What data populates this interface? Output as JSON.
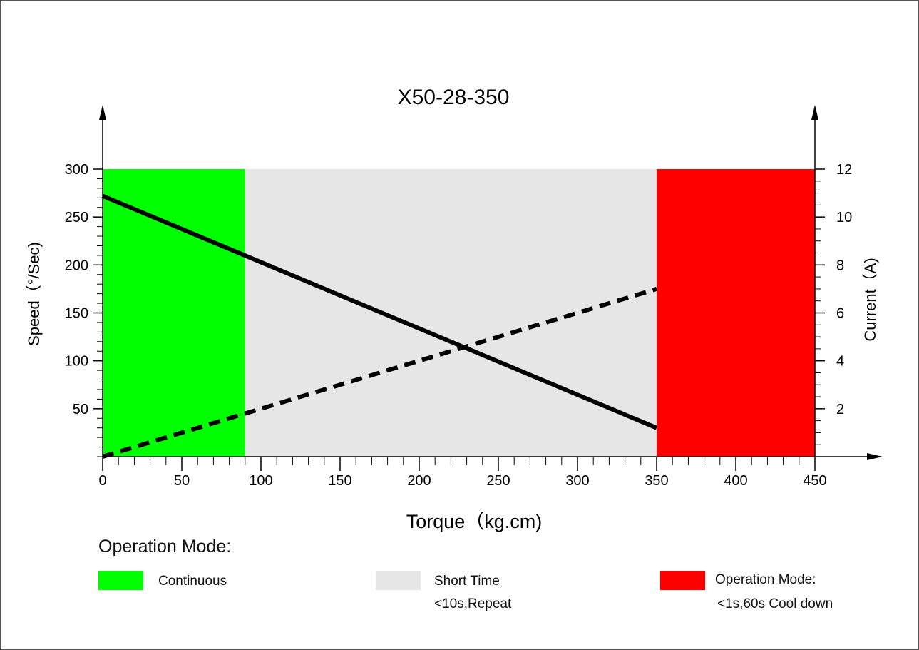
{
  "chart_data": {
    "type": "line",
    "title": "X50-28-350",
    "xlabel": "Torque（kg.cm)",
    "ylabel": "Speed（°/Sec)",
    "y2label": "Current（A)",
    "xlim": [
      0,
      450
    ],
    "ylim": [
      0,
      300
    ],
    "y2lim": [
      0,
      12
    ],
    "x_ticks": [
      0,
      50,
      100,
      150,
      200,
      250,
      300,
      350,
      400,
      450
    ],
    "y_ticks": [
      50,
      100,
      150,
      200,
      250,
      300
    ],
    "y2_ticks": [
      2,
      4,
      6,
      8,
      10,
      12
    ],
    "regions": [
      {
        "name": "Continuous",
        "x": [
          0,
          90
        ],
        "color": "#00ff00"
      },
      {
        "name": "Short Time",
        "x": [
          90,
          350
        ],
        "color": "#e6e6e6"
      },
      {
        "name": "Operation Mode:",
        "x": [
          350,
          450
        ],
        "color": "#ff0000"
      }
    ],
    "series": [
      {
        "axis": "left",
        "style": "solid",
        "x": [
          0,
          350
        ],
        "values": [
          272,
          30
        ]
      },
      {
        "axis": "right",
        "style": "dashed",
        "x": [
          0,
          350
        ],
        "values": [
          0,
          7
        ]
      }
    ]
  },
  "legend": {
    "heading": "Operation Mode:",
    "items": [
      {
        "color": "#00ff00",
        "line1": "Continuous",
        "line2": ""
      },
      {
        "color": "#e6e6e6",
        "line1": "Short Time",
        "line2": "<10s,Repeat"
      },
      {
        "color": "#ff0000",
        "line1": "Operation Mode:",
        "line2": "<1s,60s Cool down"
      }
    ]
  }
}
